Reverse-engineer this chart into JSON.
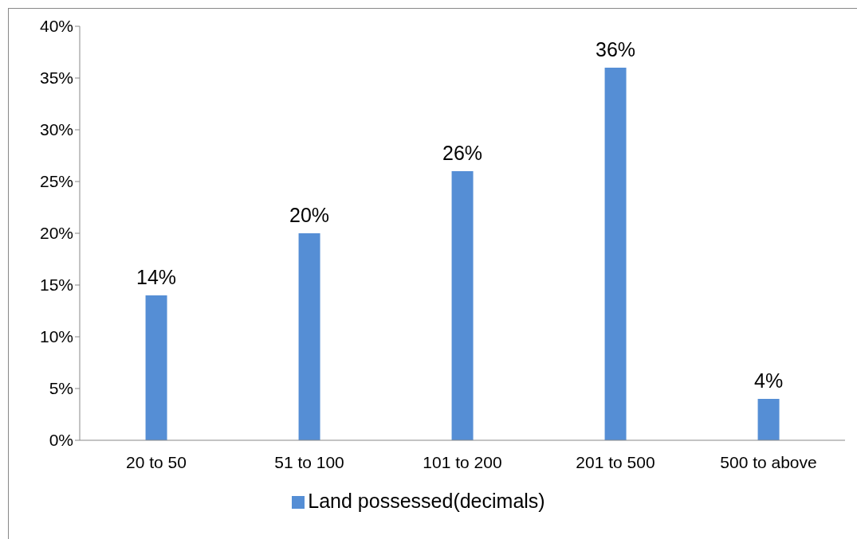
{
  "chart_data": {
    "type": "bar",
    "categories": [
      "20 to 50",
      "51 to 100",
      "101 to 200",
      "201 to 500",
      "500 to above"
    ],
    "series": [
      {
        "name": "Land possessed(decimals)",
        "color": "#558ed5",
        "values": [
          14,
          20,
          26,
          36,
          4
        ],
        "value_labels": [
          "14%",
          "20%",
          "26%",
          "36%",
          "4%"
        ]
      }
    ],
    "ylim": [
      0,
      40
    ],
    "yticks": [
      {
        "value": 0,
        "label": "0%"
      },
      {
        "value": 5,
        "label": "5%"
      },
      {
        "value": 10,
        "label": "10%"
      },
      {
        "value": 15,
        "label": "15%"
      },
      {
        "value": 20,
        "label": "20%"
      },
      {
        "value": 25,
        "label": "25%"
      },
      {
        "value": 30,
        "label": "30%"
      },
      {
        "value": 35,
        "label": "35%"
      },
      {
        "value": 40,
        "label": "40%"
      }
    ],
    "grid": false,
    "legend": "bottom"
  }
}
